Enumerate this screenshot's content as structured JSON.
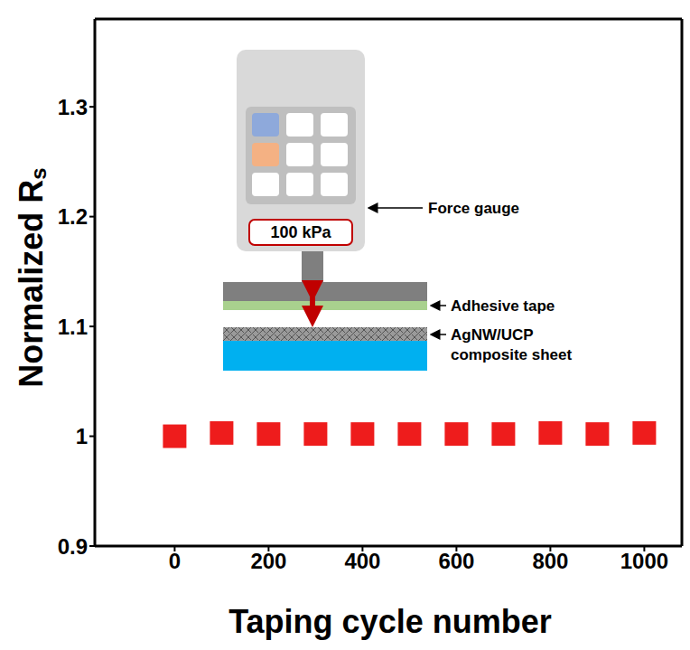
{
  "chart_data": {
    "type": "scatter",
    "x_label": "Taping cycle number",
    "y_label": "Normalized Rs",
    "x": [
      0,
      100,
      200,
      300,
      400,
      500,
      600,
      700,
      800,
      900,
      1000
    ],
    "values": [
      1.0,
      1.003,
      1.002,
      1.002,
      1.002,
      1.002,
      1.002,
      1.002,
      1.003,
      1.002,
      1.003
    ],
    "errors": [
      0,
      0.008,
      0.008,
      0.008,
      0.008,
      0.008,
      0.008,
      0.008,
      0.008,
      0.008,
      0.008
    ],
    "color": "#ee1c1c",
    "marker": "square",
    "xlim": [
      -170,
      1080
    ],
    "xticks": [
      0,
      200,
      400,
      600,
      800,
      1000
    ],
    "ylim": [
      0.9,
      1.38
    ],
    "yticks": [
      0.9,
      1,
      1.1,
      1.2,
      1.3
    ],
    "grid": false,
    "inset": {
      "gauge_reading": "100 kPa",
      "labels": [
        "Force gauge",
        "Adhesive tape",
        "AgNW/UCP composite sheet"
      ]
    }
  }
}
